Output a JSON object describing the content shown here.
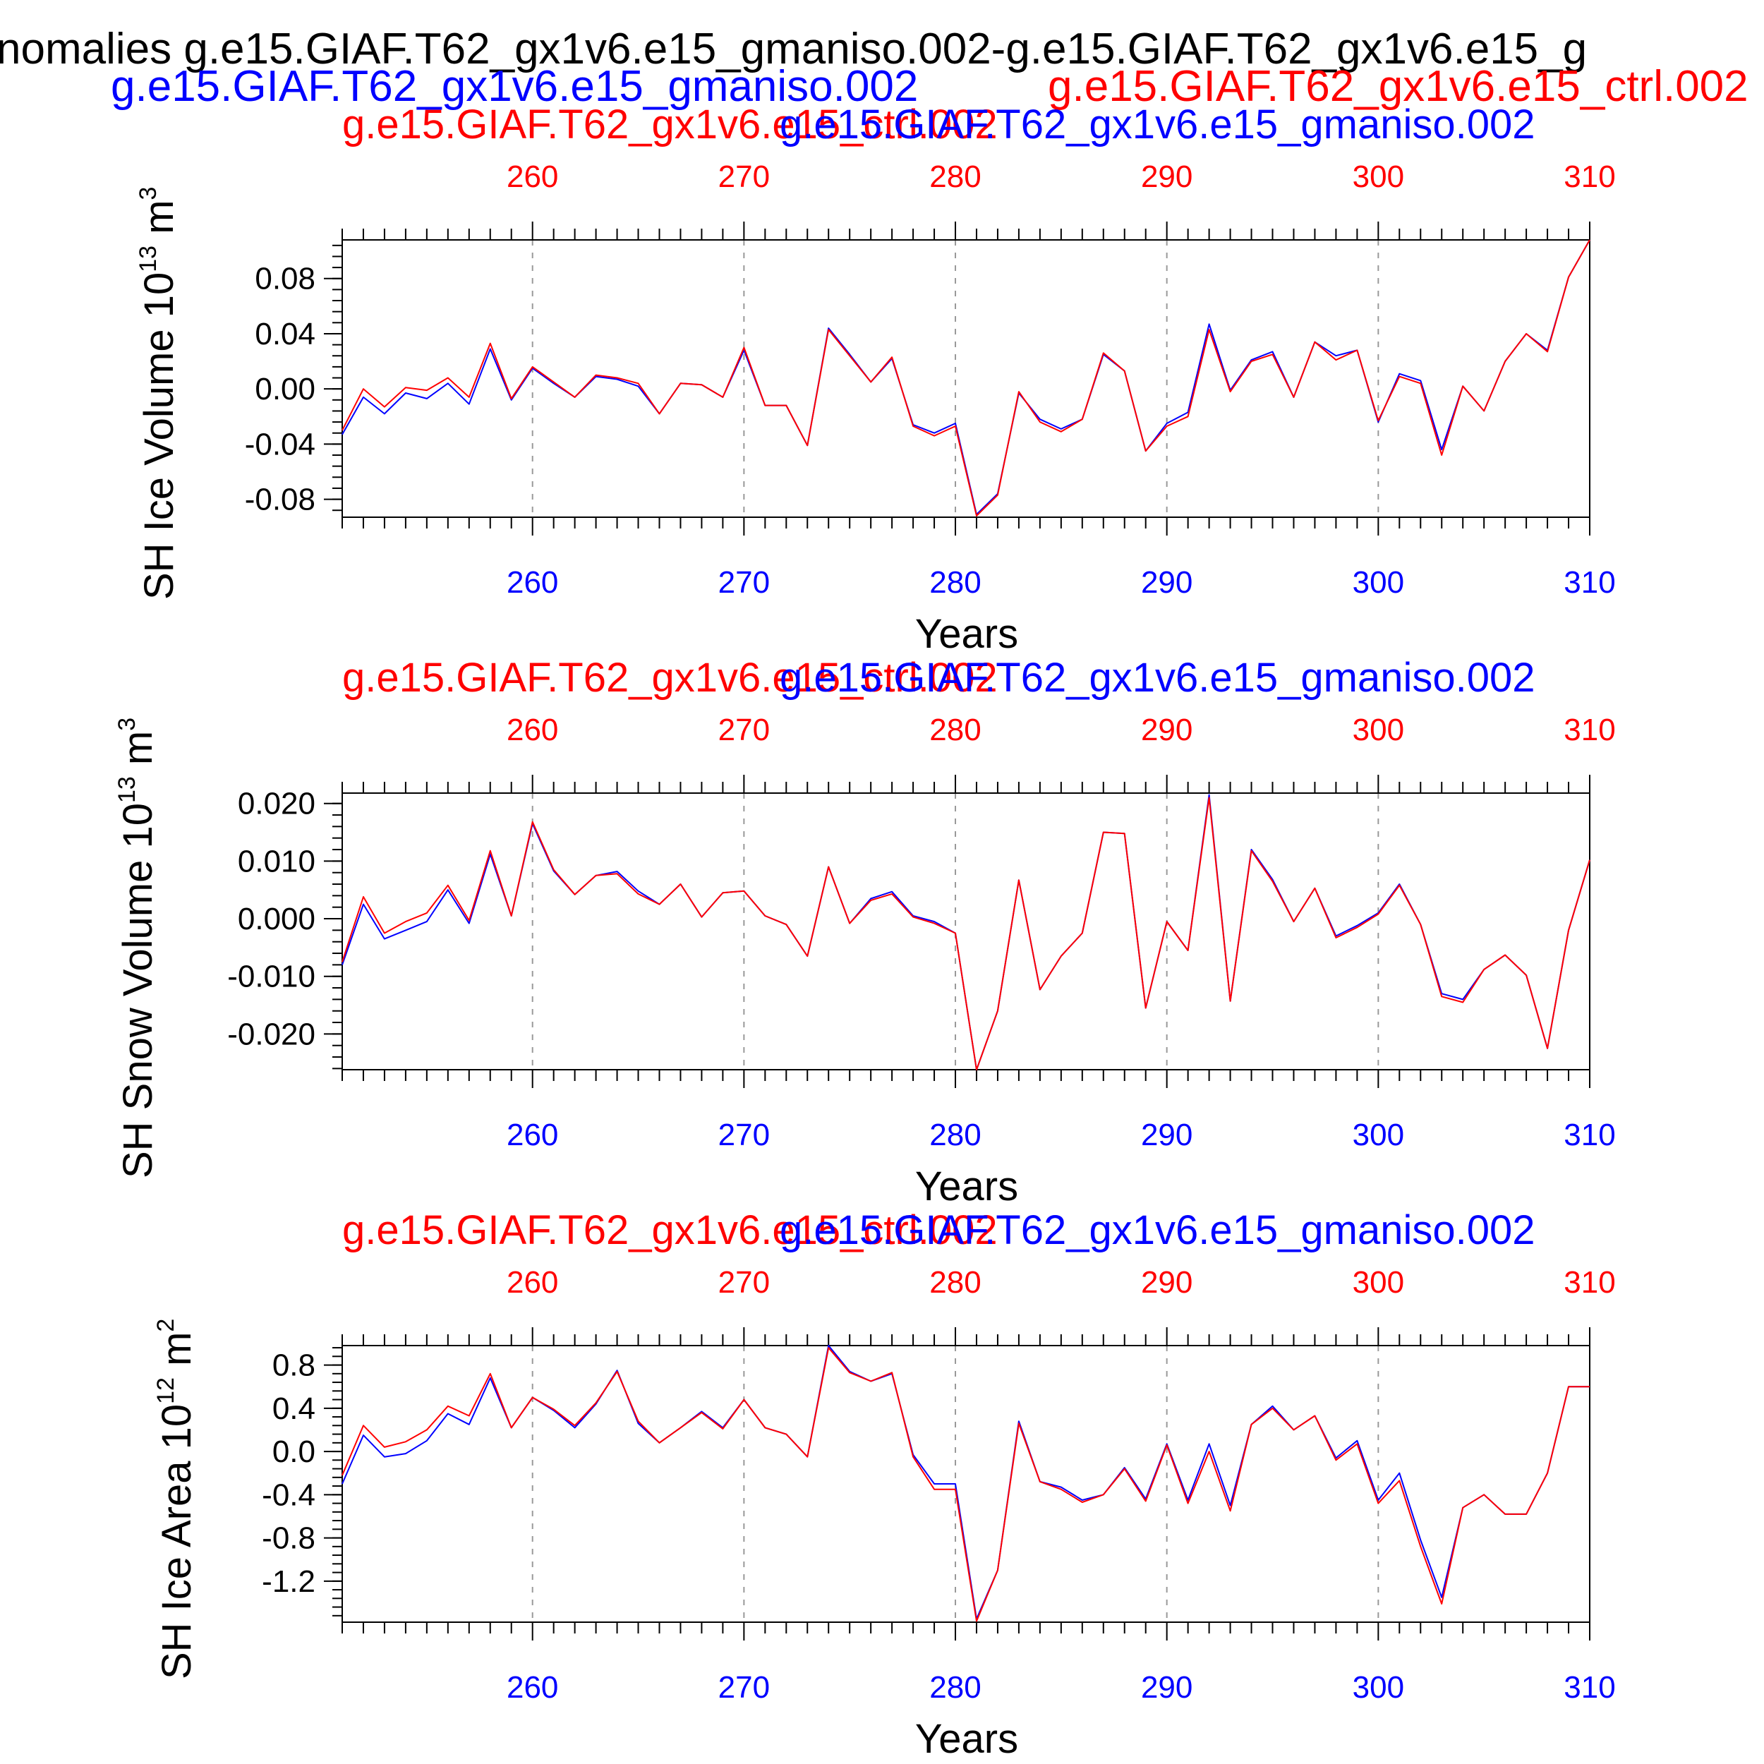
{
  "title_top": "nomalies g.e15.GIAF.T62_gx1v6.e15_gmaniso.002-g.e15.GIAF.T62_gx1v6.e15_g",
  "legend_line": {
    "blue": "g.e15.GIAF.T62_gx1v6.e15_gmaniso.002",
    "red": "g.e15.GIAF.T62_gx1v6.e15_ctrl.002"
  },
  "colors": {
    "red": "#ff0000",
    "blue": "#0000ff",
    "black": "#000000",
    "grid": "#999999"
  },
  "chart_data": [
    {
      "type": "line",
      "ylabel": "SH Ice Volume",
      "ylabel_unit_base": "10",
      "ylabel_unit_exp": "13",
      "ylabel_unit_tail": "m",
      "ylabel_unit_tail_exp": "3",
      "xlabel": "Years",
      "red_label": "g.e15.GIAF.T62_gx1v6.e15_ctrl.002",
      "blue_label": "g.e15.GIAF.T62_gx1v6.e15_gmaniso.002",
      "xlim": [
        251,
        310
      ],
      "ylim": [
        -0.093,
        0.108
      ],
      "yticks": [
        -0.08,
        -0.04,
        0.0,
        0.04,
        0.08
      ],
      "yticklabels": [
        "-0.08",
        "-0.04",
        "0.00",
        "0.04",
        "0.08"
      ],
      "xticks": [
        260,
        270,
        280,
        290,
        300,
        310
      ],
      "xticklabels": [
        "260",
        "270",
        "280",
        "290",
        "300",
        "310"
      ],
      "grid_x": true,
      "x": [
        251,
        252,
        253,
        254,
        255,
        256,
        257,
        258,
        259,
        260,
        261,
        262,
        263,
        264,
        265,
        266,
        267,
        268,
        269,
        270,
        271,
        272,
        273,
        274,
        275,
        276,
        277,
        278,
        279,
        280,
        281,
        282,
        283,
        284,
        285,
        286,
        287,
        288,
        289,
        290,
        291,
        292,
        293,
        294,
        295,
        296,
        297,
        298,
        299,
        300,
        301,
        302,
        303,
        304,
        305,
        306,
        307,
        308,
        309,
        310
      ],
      "series": [
        {
          "name": "g.e15.GIAF.T62_gx1v6.e15_gmaniso.002",
          "color": "#0000ff",
          "values": [
            -0.033,
            -0.006,
            -0.018,
            -0.003,
            -0.007,
            0.004,
            -0.011,
            0.029,
            -0.008,
            0.015,
            0.004,
            -0.006,
            0.009,
            0.007,
            0.002,
            -0.018,
            0.004,
            0.003,
            -0.006,
            0.028,
            -0.012,
            -0.012,
            -0.041,
            0.044,
            0.025,
            0.005,
            0.022,
            -0.026,
            -0.032,
            -0.025,
            -0.091,
            -0.076,
            -0.003,
            -0.022,
            -0.029,
            -0.022,
            0.025,
            0.013,
            -0.045,
            -0.025,
            -0.017,
            0.047,
            -0.001,
            0.021,
            0.027,
            -0.006,
            0.034,
            0.024,
            0.028,
            -0.024,
            0.011,
            0.006,
            -0.044,
            0.002,
            -0.016,
            0.02,
            0.04,
            0.028,
            0.081,
            0.108
          ]
        },
        {
          "name": "g.e15.GIAF.T62_gx1v6.e15_ctrl.002",
          "color": "#ff0000",
          "values": [
            -0.03,
            0.0,
            -0.013,
            0.001,
            -0.001,
            0.008,
            -0.006,
            0.033,
            -0.007,
            0.016,
            0.005,
            -0.006,
            0.01,
            0.008,
            0.004,
            -0.018,
            0.004,
            0.003,
            -0.006,
            0.03,
            -0.012,
            -0.012,
            -0.041,
            0.043,
            0.024,
            0.005,
            0.023,
            -0.027,
            -0.034,
            -0.027,
            -0.092,
            -0.077,
            -0.002,
            -0.024,
            -0.031,
            -0.022,
            0.026,
            0.013,
            -0.045,
            -0.027,
            -0.02,
            0.043,
            -0.002,
            0.02,
            0.025,
            -0.006,
            0.034,
            0.021,
            0.028,
            -0.023,
            0.009,
            0.004,
            -0.048,
            0.002,
            -0.016,
            0.02,
            0.04,
            0.027,
            0.081,
            0.108
          ]
        }
      ]
    },
    {
      "type": "line",
      "ylabel": "SH Snow Volume",
      "ylabel_unit_base": "10",
      "ylabel_unit_exp": "13",
      "ylabel_unit_tail": "m",
      "ylabel_unit_tail_exp": "3",
      "xlabel": "Years",
      "red_label": "g.e15.GIAF.T62_gx1v6.e15_ctrl.002",
      "blue_label": "g.e15.GIAF.T62_gx1v6.e15_gmaniso.002",
      "xlim": [
        251,
        310
      ],
      "ylim": [
        -0.0262,
        0.0218
      ],
      "yticks": [
        -0.02,
        -0.01,
        0.0,
        0.01,
        0.02
      ],
      "yticklabels": [
        "-0.020",
        "-0.010",
        "0.000",
        "0.010",
        "0.020"
      ],
      "xticks": [
        260,
        270,
        280,
        290,
        300,
        310
      ],
      "xticklabels": [
        "260",
        "270",
        "280",
        "290",
        "300",
        "310"
      ],
      "grid_x": true,
      "x": [
        251,
        252,
        253,
        254,
        255,
        256,
        257,
        258,
        259,
        260,
        261,
        262,
        263,
        264,
        265,
        266,
        267,
        268,
        269,
        270,
        271,
        272,
        273,
        274,
        275,
        276,
        277,
        278,
        279,
        280,
        281,
        282,
        283,
        284,
        285,
        286,
        287,
        288,
        289,
        290,
        291,
        292,
        293,
        294,
        295,
        296,
        297,
        298,
        299,
        300,
        301,
        302,
        303,
        304,
        305,
        306,
        307,
        308,
        309,
        310
      ],
      "series": [
        {
          "name": "g.e15.GIAF.T62_gx1v6.e15_gmaniso.002",
          "color": "#0000ff",
          "values": [
            -0.008,
            0.0025,
            -0.0035,
            -0.002,
            -0.0005,
            0.005,
            -0.0008,
            0.0112,
            0.0005,
            0.0165,
            0.0083,
            0.0042,
            0.0075,
            0.0082,
            0.0048,
            0.0025,
            0.006,
            0.0003,
            0.0045,
            0.0048,
            0.0005,
            -0.001,
            -0.0065,
            0.009,
            -0.0008,
            0.0035,
            0.0047,
            0.0005,
            -0.0005,
            -0.0025,
            -0.0262,
            -0.016,
            0.0067,
            -0.0123,
            -0.0065,
            -0.0025,
            0.015,
            0.0148,
            -0.0155,
            -0.0005,
            -0.0055,
            0.0215,
            -0.0143,
            0.012,
            0.0068,
            -0.0005,
            0.0053,
            -0.003,
            -0.0012,
            0.001,
            0.006,
            -0.001,
            -0.013,
            -0.014,
            -0.0088,
            -0.0063,
            -0.0098,
            -0.0225,
            -0.002,
            0.0102
          ]
        },
        {
          "name": "g.e15.GIAF.T62_gx1v6.e15_ctrl.002",
          "color": "#ff0000",
          "values": [
            -0.0075,
            0.0038,
            -0.0025,
            -0.0005,
            0.001,
            0.0058,
            -0.0003,
            0.0118,
            0.0005,
            0.0168,
            0.0085,
            0.0042,
            0.0075,
            0.0078,
            0.0043,
            0.0025,
            0.006,
            0.0003,
            0.0045,
            0.0048,
            0.0005,
            -0.001,
            -0.0065,
            0.009,
            -0.0008,
            0.0032,
            0.0043,
            0.0003,
            -0.0008,
            -0.0025,
            -0.0262,
            -0.016,
            0.0067,
            -0.0123,
            -0.0065,
            -0.0025,
            0.015,
            0.0148,
            -0.0155,
            -0.0005,
            -0.0055,
            0.021,
            -0.0143,
            0.0118,
            0.0065,
            -0.0005,
            0.0053,
            -0.0033,
            -0.0015,
            0.0008,
            0.0058,
            -0.001,
            -0.0135,
            -0.0145,
            -0.0088,
            -0.0063,
            -0.0098,
            -0.0225,
            -0.002,
            0.0102
          ]
        }
      ]
    },
    {
      "type": "line",
      "ylabel": "SH Ice Area",
      "ylabel_unit_base": "10",
      "ylabel_unit_exp": "12",
      "ylabel_unit_tail": "m",
      "ylabel_unit_tail_exp": "2",
      "xlabel": "Years",
      "red_label": "g.e15.GIAF.T62_gx1v6.e15_ctrl.002",
      "blue_label": "g.e15.GIAF.T62_gx1v6.e15_gmaniso.002",
      "xlim": [
        251,
        310
      ],
      "ylim": [
        -1.58,
        0.98
      ],
      "yticks": [
        -1.2,
        -0.8,
        -0.4,
        0.0,
        0.4,
        0.8
      ],
      "yticklabels": [
        "-1.2",
        "-0.8",
        "-0.4",
        "0.0",
        "0.4",
        "0.8"
      ],
      "xticks": [
        260,
        270,
        280,
        290,
        300,
        310
      ],
      "xticklabels": [
        "260",
        "270",
        "280",
        "290",
        "300",
        "310"
      ],
      "grid_x": true,
      "x": [
        251,
        252,
        253,
        254,
        255,
        256,
        257,
        258,
        259,
        260,
        261,
        262,
        263,
        264,
        265,
        266,
        267,
        268,
        269,
        270,
        271,
        272,
        273,
        274,
        275,
        276,
        277,
        278,
        279,
        280,
        281,
        282,
        283,
        284,
        285,
        286,
        287,
        288,
        289,
        290,
        291,
        292,
        293,
        294,
        295,
        296,
        297,
        298,
        299,
        300,
        301,
        302,
        303,
        304,
        305,
        306,
        307,
        308,
        309,
        310
      ],
      "series": [
        {
          "name": "g.e15.GIAF.T62_gx1v6.e15_gmaniso.002",
          "color": "#0000ff",
          "values": [
            -0.3,
            0.15,
            -0.05,
            -0.02,
            0.1,
            0.35,
            0.25,
            0.68,
            0.22,
            0.5,
            0.38,
            0.22,
            0.44,
            0.75,
            0.26,
            0.08,
            0.22,
            0.37,
            0.22,
            0.48,
            0.22,
            0.16,
            -0.05,
            0.98,
            0.74,
            0.65,
            0.72,
            -0.03,
            -0.3,
            -0.3,
            -1.55,
            -1.1,
            0.28,
            -0.28,
            -0.33,
            -0.45,
            -0.4,
            -0.15,
            -0.44,
            0.07,
            -0.45,
            0.07,
            -0.5,
            0.25,
            0.42,
            0.2,
            0.33,
            -0.06,
            0.1,
            -0.45,
            -0.2,
            -0.82,
            -1.35,
            -0.52,
            -0.4,
            -0.58,
            -0.58,
            -0.2,
            0.6,
            0.6
          ]
        },
        {
          "name": "g.e15.GIAF.T62_gx1v6.e15_ctrl.002",
          "color": "#ff0000",
          "values": [
            -0.22,
            0.24,
            0.04,
            0.09,
            0.2,
            0.42,
            0.33,
            0.72,
            0.22,
            0.5,
            0.39,
            0.24,
            0.45,
            0.74,
            0.28,
            0.08,
            0.22,
            0.36,
            0.21,
            0.48,
            0.22,
            0.16,
            -0.05,
            0.96,
            0.73,
            0.65,
            0.73,
            -0.05,
            -0.35,
            -0.35,
            -1.57,
            -1.1,
            0.26,
            -0.28,
            -0.35,
            -0.47,
            -0.4,
            -0.16,
            -0.46,
            0.06,
            -0.48,
            0.0,
            -0.55,
            0.25,
            0.4,
            0.2,
            0.33,
            -0.08,
            0.07,
            -0.48,
            -0.27,
            -0.88,
            -1.41,
            -0.52,
            -0.4,
            -0.58,
            -0.58,
            -0.2,
            0.6,
            0.6
          ]
        }
      ]
    }
  ]
}
